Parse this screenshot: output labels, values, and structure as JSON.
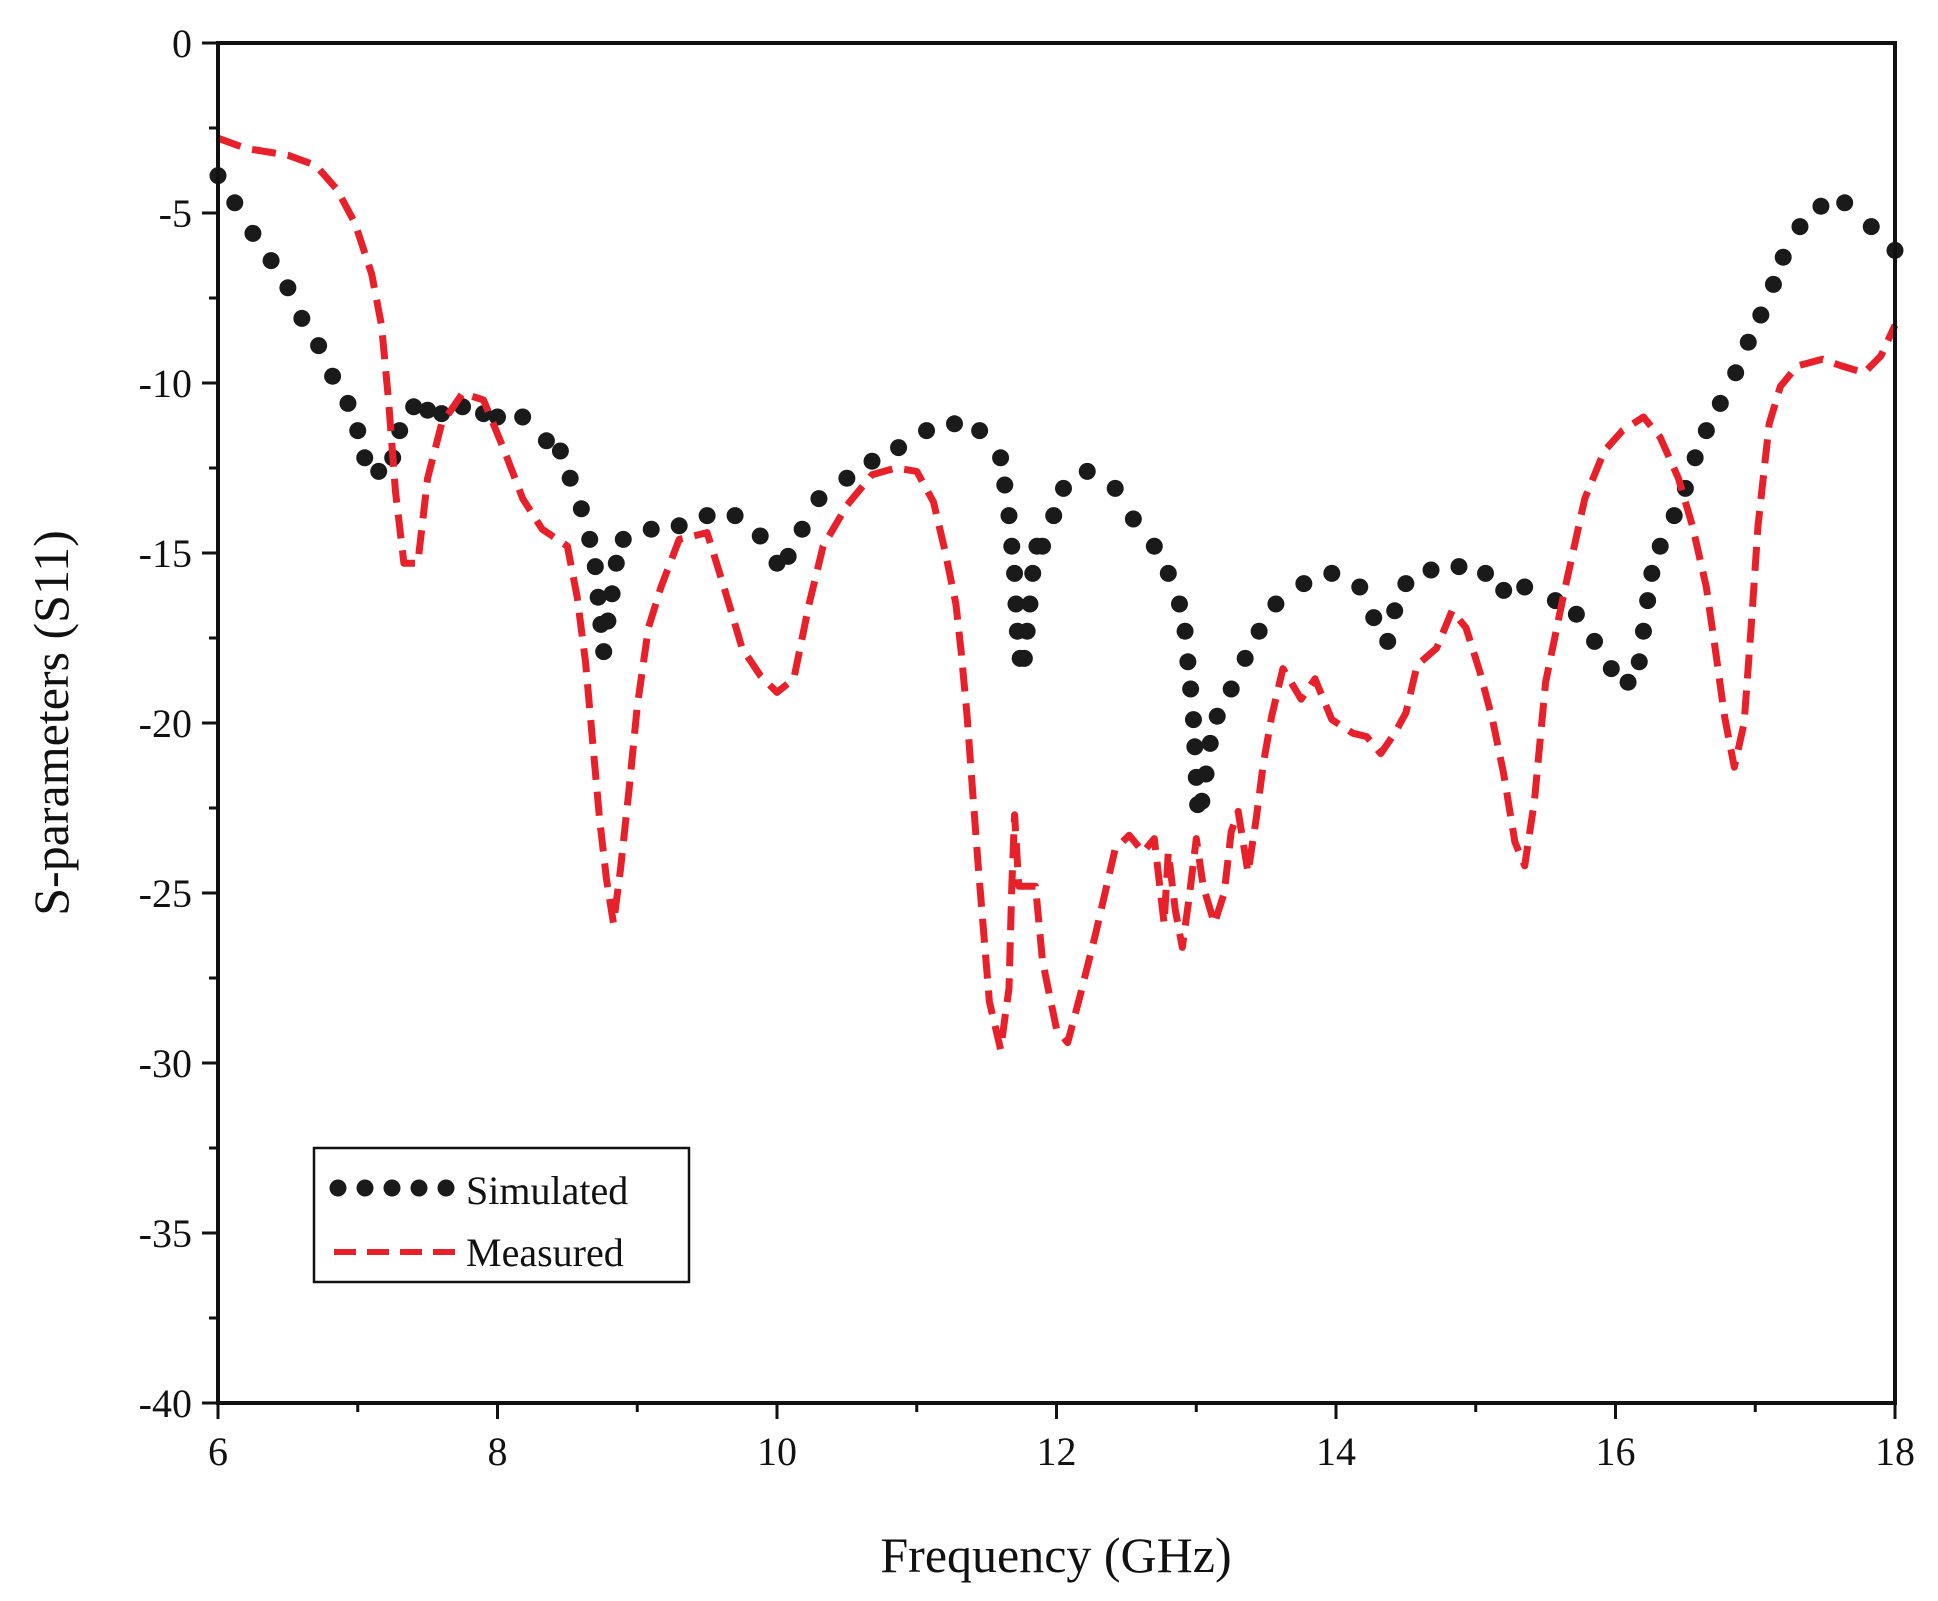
{
  "chart_data": {
    "type": "line",
    "title": "",
    "xlabel": "Frequency (GHz)",
    "ylabel": "S-parameters (S11)",
    "xlim": [
      6,
      18
    ],
    "ylim": [
      -40,
      0
    ],
    "xticks": [
      6,
      8,
      10,
      12,
      14,
      16,
      18
    ],
    "yticks": [
      0,
      -5,
      -10,
      -15,
      -20,
      -25,
      -30,
      -35,
      -40
    ],
    "grid": false,
    "legend_position": "bottom-left",
    "series": [
      {
        "name": "Simulated",
        "style": "dotted",
        "color": "#1a1a1a",
        "points": [
          [
            6.0,
            -3.9
          ],
          [
            6.12,
            -4.7
          ],
          [
            6.25,
            -5.6
          ],
          [
            6.38,
            -6.4
          ],
          [
            6.5,
            -7.2
          ],
          [
            6.6,
            -8.1
          ],
          [
            6.72,
            -8.9
          ],
          [
            6.82,
            -9.8
          ],
          [
            6.93,
            -10.6
          ],
          [
            7.0,
            -11.4
          ],
          [
            7.05,
            -12.2
          ],
          [
            7.15,
            -12.6
          ],
          [
            7.25,
            -12.2
          ],
          [
            7.3,
            -11.4
          ],
          [
            7.4,
            -10.7
          ],
          [
            7.5,
            -10.8
          ],
          [
            7.6,
            -10.9
          ],
          [
            7.75,
            -10.7
          ],
          [
            7.9,
            -10.9
          ],
          [
            8.0,
            -11.0
          ],
          [
            8.18,
            -11.0
          ],
          [
            8.35,
            -11.7
          ],
          [
            8.45,
            -12.0
          ],
          [
            8.52,
            -12.8
          ],
          [
            8.6,
            -13.7
          ],
          [
            8.66,
            -14.6
          ],
          [
            8.7,
            -15.4
          ],
          [
            8.72,
            -16.3
          ],
          [
            8.74,
            -17.1
          ],
          [
            8.76,
            -17.9
          ],
          [
            8.79,
            -17.0
          ],
          [
            8.82,
            -16.2
          ],
          [
            8.85,
            -15.3
          ],
          [
            8.9,
            -14.6
          ],
          [
            9.1,
            -14.3
          ],
          [
            9.3,
            -14.2
          ],
          [
            9.5,
            -13.9
          ],
          [
            9.7,
            -13.9
          ],
          [
            9.88,
            -14.5
          ],
          [
            10.0,
            -15.3
          ],
          [
            10.08,
            -15.1
          ],
          [
            10.18,
            -14.3
          ],
          [
            10.3,
            -13.4
          ],
          [
            10.5,
            -12.8
          ],
          [
            10.68,
            -12.3
          ],
          [
            10.87,
            -11.9
          ],
          [
            11.07,
            -11.4
          ],
          [
            11.27,
            -11.2
          ],
          [
            11.45,
            -11.4
          ],
          [
            11.6,
            -12.2
          ],
          [
            11.63,
            -13.0
          ],
          [
            11.66,
            -13.9
          ],
          [
            11.68,
            -14.8
          ],
          [
            11.7,
            -15.6
          ],
          [
            11.71,
            -16.5
          ],
          [
            11.72,
            -17.3
          ],
          [
            11.74,
            -18.1
          ],
          [
            11.77,
            -18.1
          ],
          [
            11.79,
            -17.3
          ],
          [
            11.81,
            -16.5
          ],
          [
            11.83,
            -15.6
          ],
          [
            11.86,
            -14.8
          ],
          [
            11.9,
            -14.8
          ],
          [
            11.98,
            -13.9
          ],
          [
            12.05,
            -13.1
          ],
          [
            12.22,
            -12.6
          ],
          [
            12.42,
            -13.1
          ],
          [
            12.55,
            -14.0
          ],
          [
            12.7,
            -14.8
          ],
          [
            12.8,
            -15.6
          ],
          [
            12.88,
            -16.5
          ],
          [
            12.92,
            -17.3
          ],
          [
            12.94,
            -18.2
          ],
          [
            12.96,
            -19.0
          ],
          [
            12.98,
            -19.9
          ],
          [
            12.99,
            -20.7
          ],
          [
            13.0,
            -21.6
          ],
          [
            13.01,
            -22.4
          ],
          [
            13.04,
            -22.3
          ],
          [
            13.07,
            -21.5
          ],
          [
            13.1,
            -20.6
          ],
          [
            13.15,
            -19.8
          ],
          [
            13.25,
            -19.0
          ],
          [
            13.35,
            -18.1
          ],
          [
            13.45,
            -17.3
          ],
          [
            13.57,
            -16.5
          ],
          [
            13.77,
            -15.9
          ],
          [
            13.97,
            -15.6
          ],
          [
            14.17,
            -16.0
          ],
          [
            14.27,
            -16.9
          ],
          [
            14.37,
            -17.6
          ],
          [
            14.42,
            -16.7
          ],
          [
            14.5,
            -15.9
          ],
          [
            14.68,
            -15.5
          ],
          [
            14.88,
            -15.4
          ],
          [
            15.07,
            -15.6
          ],
          [
            15.2,
            -16.1
          ],
          [
            15.35,
            -16.0
          ],
          [
            15.57,
            -16.4
          ],
          [
            15.72,
            -16.8
          ],
          [
            15.85,
            -17.6
          ],
          [
            15.97,
            -18.4
          ],
          [
            16.09,
            -18.8
          ],
          [
            16.17,
            -18.2
          ],
          [
            16.2,
            -17.3
          ],
          [
            16.23,
            -16.4
          ],
          [
            16.26,
            -15.6
          ],
          [
            16.32,
            -14.8
          ],
          [
            16.42,
            -13.9
          ],
          [
            16.5,
            -13.1
          ],
          [
            16.57,
            -12.2
          ],
          [
            16.65,
            -11.4
          ],
          [
            16.75,
            -10.6
          ],
          [
            16.86,
            -9.7
          ],
          [
            16.95,
            -8.8
          ],
          [
            17.04,
            -8.0
          ],
          [
            17.13,
            -7.1
          ],
          [
            17.2,
            -6.3
          ],
          [
            17.32,
            -5.4
          ],
          [
            17.47,
            -4.8
          ],
          [
            17.64,
            -4.7
          ],
          [
            17.83,
            -5.4
          ],
          [
            18.0,
            -6.1
          ]
        ]
      },
      {
        "name": "Measured",
        "style": "dashed",
        "color": "#e8202a",
        "points": [
          [
            6.0,
            -2.8
          ],
          [
            6.2,
            -3.1
          ],
          [
            6.5,
            -3.3
          ],
          [
            6.7,
            -3.6
          ],
          [
            6.85,
            -4.3
          ],
          [
            6.98,
            -5.3
          ],
          [
            7.1,
            -6.8
          ],
          [
            7.17,
            -8.3
          ],
          [
            7.22,
            -10.5
          ],
          [
            7.27,
            -13.2
          ],
          [
            7.33,
            -15.3
          ],
          [
            7.43,
            -15.3
          ],
          [
            7.5,
            -12.8
          ],
          [
            7.6,
            -11.2
          ],
          [
            7.75,
            -10.3
          ],
          [
            7.9,
            -10.5
          ],
          [
            8.05,
            -12.0
          ],
          [
            8.18,
            -13.4
          ],
          [
            8.32,
            -14.3
          ],
          [
            8.5,
            -14.8
          ],
          [
            8.57,
            -16.3
          ],
          [
            8.63,
            -18.2
          ],
          [
            8.68,
            -20.5
          ],
          [
            8.73,
            -22.8
          ],
          [
            8.78,
            -24.6
          ],
          [
            8.83,
            -25.9
          ],
          [
            8.88,
            -24.3
          ],
          [
            8.94,
            -22.0
          ],
          [
            9.0,
            -19.5
          ],
          [
            9.08,
            -17.2
          ],
          [
            9.17,
            -16.0
          ],
          [
            9.3,
            -14.6
          ],
          [
            9.5,
            -14.4
          ],
          [
            9.62,
            -16.0
          ],
          [
            9.75,
            -17.8
          ],
          [
            9.88,
            -18.6
          ],
          [
            10.0,
            -19.1
          ],
          [
            10.12,
            -18.7
          ],
          [
            10.23,
            -16.5
          ],
          [
            10.33,
            -14.8
          ],
          [
            10.5,
            -13.6
          ],
          [
            10.68,
            -12.7
          ],
          [
            10.85,
            -12.5
          ],
          [
            11.0,
            -12.6
          ],
          [
            11.12,
            -13.5
          ],
          [
            11.2,
            -14.9
          ],
          [
            11.28,
            -16.5
          ],
          [
            11.32,
            -18.0
          ],
          [
            11.36,
            -19.8
          ],
          [
            11.4,
            -22.0
          ],
          [
            11.44,
            -24.2
          ],
          [
            11.48,
            -26.2
          ],
          [
            11.52,
            -28.2
          ],
          [
            11.6,
            -29.6
          ],
          [
            11.66,
            -27.8
          ],
          [
            11.68,
            -24.8
          ],
          [
            11.7,
            -22.7
          ],
          [
            11.73,
            -24.8
          ],
          [
            11.85,
            -24.8
          ],
          [
            11.9,
            -27.0
          ],
          [
            12.0,
            -29.0
          ],
          [
            12.08,
            -29.4
          ],
          [
            12.17,
            -28.0
          ],
          [
            12.28,
            -26.2
          ],
          [
            12.42,
            -23.7
          ],
          [
            12.52,
            -23.3
          ],
          [
            12.62,
            -23.8
          ],
          [
            12.7,
            -23.4
          ],
          [
            12.77,
            -25.9
          ],
          [
            12.8,
            -23.8
          ],
          [
            12.85,
            -25.5
          ],
          [
            12.9,
            -26.6
          ],
          [
            12.95,
            -25.1
          ],
          [
            13.0,
            -23.4
          ],
          [
            13.05,
            -24.8
          ],
          [
            13.13,
            -25.9
          ],
          [
            13.2,
            -25.0
          ],
          [
            13.25,
            -23.2
          ],
          [
            13.3,
            -22.6
          ],
          [
            13.37,
            -24.4
          ],
          [
            13.43,
            -22.8
          ],
          [
            13.48,
            -21.2
          ],
          [
            13.54,
            -19.8
          ],
          [
            13.62,
            -18.4
          ],
          [
            13.75,
            -19.3
          ],
          [
            13.85,
            -18.7
          ],
          [
            13.97,
            -19.9
          ],
          [
            14.12,
            -20.3
          ],
          [
            14.22,
            -20.4
          ],
          [
            14.32,
            -20.9
          ],
          [
            14.42,
            -20.3
          ],
          [
            14.5,
            -19.7
          ],
          [
            14.58,
            -18.3
          ],
          [
            14.72,
            -17.8
          ],
          [
            14.83,
            -16.7
          ],
          [
            14.93,
            -17.2
          ],
          [
            15.03,
            -18.5
          ],
          [
            15.12,
            -19.9
          ],
          [
            15.2,
            -21.5
          ],
          [
            15.28,
            -23.5
          ],
          [
            15.35,
            -24.2
          ],
          [
            15.42,
            -22.3
          ],
          [
            15.5,
            -18.8
          ],
          [
            15.63,
            -16.2
          ],
          [
            15.78,
            -13.4
          ],
          [
            15.92,
            -12.0
          ],
          [
            16.05,
            -11.4
          ],
          [
            16.2,
            -11.0
          ],
          [
            16.32,
            -11.6
          ],
          [
            16.45,
            -12.8
          ],
          [
            16.55,
            -14.2
          ],
          [
            16.65,
            -16.0
          ],
          [
            16.72,
            -18.0
          ],
          [
            16.78,
            -19.8
          ],
          [
            16.85,
            -21.3
          ],
          [
            16.92,
            -20.0
          ],
          [
            16.97,
            -17.2
          ],
          [
            17.02,
            -14.2
          ],
          [
            17.1,
            -11.2
          ],
          [
            17.18,
            -10.1
          ],
          [
            17.3,
            -9.5
          ],
          [
            17.48,
            -9.3
          ],
          [
            17.62,
            -9.5
          ],
          [
            17.78,
            -9.7
          ],
          [
            17.9,
            -9.2
          ],
          [
            18.0,
            -8.3
          ]
        ]
      }
    ]
  }
}
